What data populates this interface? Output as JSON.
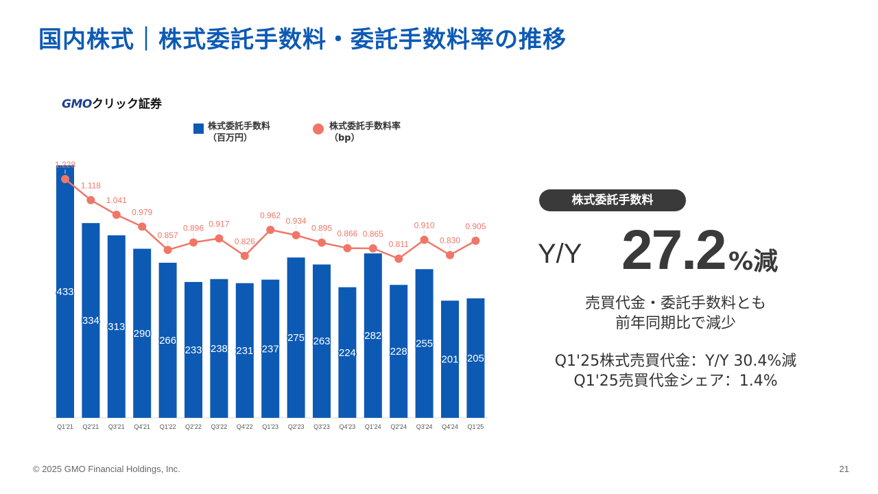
{
  "title": "国内株式｜株式委託手数料・委託手数料率の推移",
  "logo": {
    "gmo": "GMO",
    "jp": "クリック証券"
  },
  "legend": {
    "bar_label_1": "株式委託手数料",
    "bar_label_2": "（百万円）",
    "line_label_1": "株式委託手数料率",
    "line_label_2": "（bp）"
  },
  "chart_data": {
    "type": "bar",
    "categories": [
      "Q1'21",
      "Q2'21",
      "Q3'21",
      "Q4'21",
      "Q1'22",
      "Q2'22",
      "Q3'22",
      "Q4'22",
      "Q1'23",
      "Q2'23",
      "Q3'23",
      "Q4'23",
      "Q1'24",
      "Q2'24",
      "Q3'24",
      "Q4'24",
      "Q1'25"
    ],
    "series": [
      {
        "name": "株式委託手数料（百万円）",
        "type": "bar",
        "color": "#0d5ab4",
        "values": [
          433,
          334,
          313,
          290,
          266,
          233,
          238,
          231,
          237,
          275,
          263,
          224,
          282,
          228,
          255,
          201,
          205
        ]
      },
      {
        "name": "株式委託手数料率（bp）",
        "type": "line",
        "color": "#ef7768",
        "values": [
          1.228,
          1.118,
          1.041,
          0.979,
          0.857,
          0.896,
          0.917,
          0.826,
          0.962,
          0.934,
          0.895,
          0.866,
          0.865,
          0.811,
          0.91,
          0.83,
          0.905
        ],
        "labels": [
          "1.228",
          "1.118",
          "1.041",
          "0.979",
          "0.857",
          "0.896",
          "0.917",
          "0.826",
          "0.962",
          "0.934",
          "0.895",
          "0.866",
          "0.865",
          "0.811",
          "0.910",
          "0.830",
          "0.905"
        ]
      }
    ],
    "bar_ylim": [
      0,
      433
    ],
    "line_ylim": [
      0.811,
      1.228
    ],
    "grid": false
  },
  "highlight": {
    "pill": "株式委託手数料",
    "yy_label": "Y/Y",
    "yy_value": "27.2",
    "yy_suffix": "%減",
    "desc1_line1": "売買代金・委託手数料とも",
    "desc1_line2": "前年同期比で減少",
    "desc2_line1": "Q1'25株式売買代金：Y/Y 30.4%減",
    "desc2_line2": "Q1'25売買代金シェア：1.4%"
  },
  "footer": "© 2025 GMO Financial Holdings, Inc.",
  "page_number": "21"
}
